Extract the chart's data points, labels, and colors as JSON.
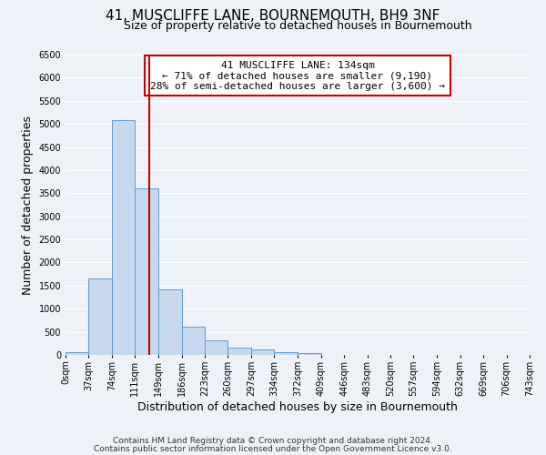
{
  "title": "41, MUSCLIFFE LANE, BOURNEMOUTH, BH9 3NF",
  "subtitle": "Size of property relative to detached houses in Bournemouth",
  "xlabel": "Distribution of detached houses by size in Bournemouth",
  "ylabel": "Number of detached properties",
  "bin_edges": [
    0,
    37,
    74,
    111,
    149,
    186,
    223,
    260,
    297,
    334,
    372,
    409,
    446,
    483,
    520,
    557,
    594,
    632,
    669,
    706,
    743
  ],
  "bin_labels": [
    "0sqm",
    "37sqm",
    "74sqm",
    "111sqm",
    "149sqm",
    "186sqm",
    "223sqm",
    "260sqm",
    "297sqm",
    "334sqm",
    "372sqm",
    "409sqm",
    "446sqm",
    "483sqm",
    "520sqm",
    "557sqm",
    "594sqm",
    "632sqm",
    "669sqm",
    "706sqm",
    "743sqm"
  ],
  "bar_values": [
    50,
    1650,
    5080,
    3600,
    1420,
    620,
    310,
    155,
    110,
    50,
    40,
    0,
    0,
    0,
    0,
    0,
    0,
    0,
    0,
    0
  ],
  "bar_color": "#c5d8ed",
  "bar_edge_color": "#5b9bd5",
  "reference_line_x": 134,
  "ylim": [
    0,
    6500
  ],
  "yticks": [
    0,
    500,
    1000,
    1500,
    2000,
    2500,
    3000,
    3500,
    4000,
    4500,
    5000,
    5500,
    6000,
    6500
  ],
  "annotation_title": "41 MUSCLIFFE LANE: 134sqm",
  "annotation_line1": "← 71% of detached houses are smaller (9,190)",
  "annotation_line2": "28% of semi-detached houses are larger (3,600) →",
  "annotation_box_color": "#ffffff",
  "annotation_box_edge": "#cc0000",
  "footer1": "Contains HM Land Registry data © Crown copyright and database right 2024.",
  "footer2": "Contains public sector information licensed under the Open Government Licence v3.0.",
  "background_color": "#eef2f8",
  "grid_color": "#ffffff",
  "title_fontsize": 11,
  "subtitle_fontsize": 9,
  "axis_label_fontsize": 9,
  "tick_fontsize": 7,
  "annotation_fontsize": 8,
  "footer_fontsize": 6.5
}
